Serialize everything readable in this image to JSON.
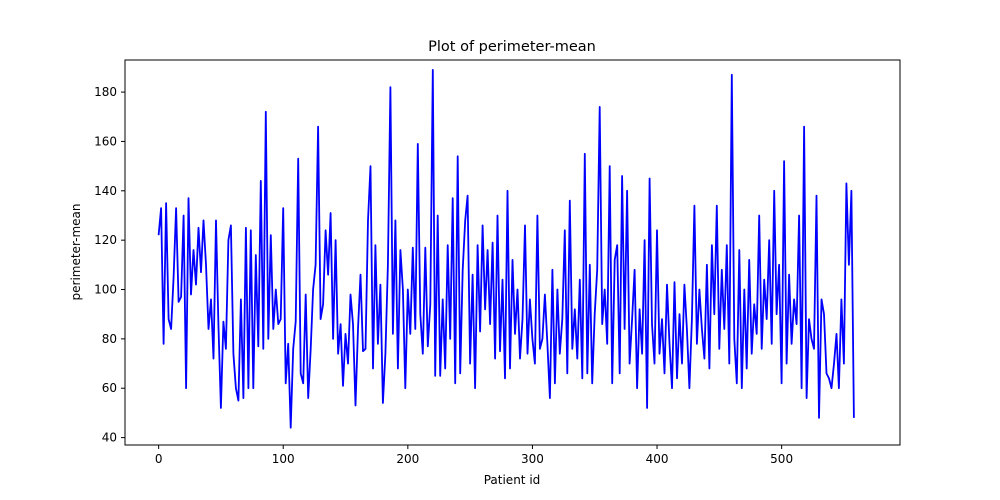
{
  "chart_data": {
    "type": "line",
    "title": "Plot of perimeter-mean",
    "xlabel": "Patient id",
    "ylabel": "perimeter-mean",
    "xlim": [
      -27,
      595
    ],
    "ylim": [
      37,
      193
    ],
    "xticks": [
      0,
      100,
      200,
      300,
      400,
      500
    ],
    "yticks": [
      40,
      60,
      80,
      100,
      120,
      140,
      160,
      180
    ],
    "grid": false,
    "legend": "none",
    "series": [
      {
        "color": "#0000ff",
        "points": [
          [
            0,
            122
          ],
          [
            2,
            133
          ],
          [
            4,
            78
          ],
          [
            6,
            135
          ],
          [
            8,
            88
          ],
          [
            10,
            84
          ],
          [
            12,
            105
          ],
          [
            14,
            133
          ],
          [
            16,
            95
          ],
          [
            18,
            97
          ],
          [
            20,
            130
          ],
          [
            22,
            60
          ],
          [
            24,
            137
          ],
          [
            26,
            98
          ],
          [
            28,
            116
          ],
          [
            30,
            102
          ],
          [
            32,
            125
          ],
          [
            34,
            107
          ],
          [
            36,
            128
          ],
          [
            38,
            110
          ],
          [
            40,
            84
          ],
          [
            42,
            96
          ],
          [
            44,
            72
          ],
          [
            46,
            128
          ],
          [
            48,
            86
          ],
          [
            50,
            52
          ],
          [
            52,
            87
          ],
          [
            54,
            76
          ],
          [
            56,
            120
          ],
          [
            58,
            126
          ],
          [
            60,
            74
          ],
          [
            62,
            60
          ],
          [
            64,
            55
          ],
          [
            66,
            96
          ],
          [
            68,
            56
          ],
          [
            70,
            125
          ],
          [
            72,
            60
          ],
          [
            74,
            124
          ],
          [
            76,
            60
          ],
          [
            78,
            114
          ],
          [
            80,
            77
          ],
          [
            82,
            144
          ],
          [
            84,
            76
          ],
          [
            86,
            172
          ],
          [
            88,
            80
          ],
          [
            90,
            122
          ],
          [
            92,
            84
          ],
          [
            94,
            100
          ],
          [
            96,
            86
          ],
          [
            98,
            88
          ],
          [
            100,
            133
          ],
          [
            102,
            62
          ],
          [
            104,
            78
          ],
          [
            106,
            44
          ],
          [
            108,
            76
          ],
          [
            110,
            87
          ],
          [
            112,
            153
          ],
          [
            114,
            66
          ],
          [
            116,
            62
          ],
          [
            118,
            98
          ],
          [
            120,
            56
          ],
          [
            122,
            76
          ],
          [
            124,
            100
          ],
          [
            126,
            110
          ],
          [
            128,
            166
          ],
          [
            130,
            88
          ],
          [
            132,
            94
          ],
          [
            134,
            124
          ],
          [
            136,
            106
          ],
          [
            138,
            131
          ],
          [
            140,
            80
          ],
          [
            142,
            120
          ],
          [
            144,
            74
          ],
          [
            146,
            86
          ],
          [
            148,
            61
          ],
          [
            150,
            82
          ],
          [
            152,
            70
          ],
          [
            154,
            98
          ],
          [
            156,
            86
          ],
          [
            158,
            53
          ],
          [
            160,
            84
          ],
          [
            162,
            106
          ],
          [
            164,
            75
          ],
          [
            166,
            76
          ],
          [
            168,
            128
          ],
          [
            170,
            150
          ],
          [
            172,
            68
          ],
          [
            174,
            118
          ],
          [
            176,
            78
          ],
          [
            178,
            102
          ],
          [
            180,
            54
          ],
          [
            182,
            74
          ],
          [
            184,
            110
          ],
          [
            186,
            182
          ],
          [
            188,
            82
          ],
          [
            190,
            128
          ],
          [
            192,
            68
          ],
          [
            194,
            116
          ],
          [
            196,
            100
          ],
          [
            198,
            60
          ],
          [
            200,
            100
          ],
          [
            202,
            82
          ],
          [
            204,
            117
          ],
          [
            206,
            84
          ],
          [
            208,
            159
          ],
          [
            210,
            90
          ],
          [
            212,
            74
          ],
          [
            214,
            117
          ],
          [
            216,
            77
          ],
          [
            218,
            94
          ],
          [
            220,
            189
          ],
          [
            222,
            65
          ],
          [
            224,
            130
          ],
          [
            226,
            65
          ],
          [
            228,
            96
          ],
          [
            230,
            68
          ],
          [
            232,
            118
          ],
          [
            234,
            80
          ],
          [
            236,
            137
          ],
          [
            238,
            62
          ],
          [
            240,
            154
          ],
          [
            242,
            66
          ],
          [
            244,
            108
          ],
          [
            246,
            128
          ],
          [
            248,
            138
          ],
          [
            250,
            70
          ],
          [
            252,
            106
          ],
          [
            254,
            60
          ],
          [
            256,
            118
          ],
          [
            258,
            83
          ],
          [
            260,
            126
          ],
          [
            262,
            92
          ],
          [
            264,
            116
          ],
          [
            266,
            86
          ],
          [
            268,
            119
          ],
          [
            270,
            72
          ],
          [
            272,
            130
          ],
          [
            274,
            75
          ],
          [
            276,
            104
          ],
          [
            278,
            64
          ],
          [
            280,
            140
          ],
          [
            282,
            68
          ],
          [
            284,
            112
          ],
          [
            286,
            82
          ],
          [
            288,
            100
          ],
          [
            290,
            72
          ],
          [
            292,
            88
          ],
          [
            294,
            126
          ],
          [
            296,
            74
          ],
          [
            298,
            96
          ],
          [
            300,
            80
          ],
          [
            302,
            70
          ],
          [
            304,
            130
          ],
          [
            306,
            76
          ],
          [
            308,
            80
          ],
          [
            310,
            98
          ],
          [
            312,
            78
          ],
          [
            314,
            56
          ],
          [
            316,
            108
          ],
          [
            318,
            62
          ],
          [
            320,
            100
          ],
          [
            322,
            74
          ],
          [
            324,
            88
          ],
          [
            326,
            124
          ],
          [
            328,
            66
          ],
          [
            330,
            136
          ],
          [
            332,
            76
          ],
          [
            334,
            92
          ],
          [
            336,
            72
          ],
          [
            338,
            104
          ],
          [
            340,
            64
          ],
          [
            342,
            155
          ],
          [
            344,
            66
          ],
          [
            346,
            110
          ],
          [
            348,
            62
          ],
          [
            350,
            90
          ],
          [
            352,
            108
          ],
          [
            354,
            174
          ],
          [
            356,
            86
          ],
          [
            358,
            100
          ],
          [
            360,
            78
          ],
          [
            362,
            150
          ],
          [
            364,
            62
          ],
          [
            366,
            112
          ],
          [
            368,
            118
          ],
          [
            370,
            66
          ],
          [
            372,
            146
          ],
          [
            374,
            84
          ],
          [
            376,
            140
          ],
          [
            378,
            70
          ],
          [
            380,
            88
          ],
          [
            382,
            108
          ],
          [
            384,
            60
          ],
          [
            386,
            92
          ],
          [
            388,
            74
          ],
          [
            390,
            120
          ],
          [
            392,
            52
          ],
          [
            394,
            145
          ],
          [
            396,
            86
          ],
          [
            398,
            70
          ],
          [
            400,
            124
          ],
          [
            402,
            74
          ],
          [
            404,
            88
          ],
          [
            406,
            66
          ],
          [
            408,
            102
          ],
          [
            410,
            78
          ],
          [
            412,
            60
          ],
          [
            414,
            103
          ],
          [
            416,
            64
          ],
          [
            418,
            90
          ],
          [
            420,
            70
          ],
          [
            422,
            102
          ],
          [
            424,
            84
          ],
          [
            426,
            60
          ],
          [
            428,
            88
          ],
          [
            430,
            134
          ],
          [
            432,
            78
          ],
          [
            434,
            100
          ],
          [
            436,
            84
          ],
          [
            438,
            72
          ],
          [
            440,
            110
          ],
          [
            442,
            68
          ],
          [
            444,
            118
          ],
          [
            446,
            90
          ],
          [
            448,
            134
          ],
          [
            450,
            76
          ],
          [
            452,
            108
          ],
          [
            454,
            84
          ],
          [
            456,
            118
          ],
          [
            458,
            70
          ],
          [
            460,
            187
          ],
          [
            462,
            80
          ],
          [
            464,
            62
          ],
          [
            466,
            116
          ],
          [
            468,
            60
          ],
          [
            470,
            100
          ],
          [
            472,
            68
          ],
          [
            474,
            112
          ],
          [
            476,
            74
          ],
          [
            478,
            94
          ],
          [
            480,
            82
          ],
          [
            482,
            130
          ],
          [
            484,
            76
          ],
          [
            486,
            104
          ],
          [
            488,
            88
          ],
          [
            490,
            120
          ],
          [
            492,
            78
          ],
          [
            494,
            140
          ],
          [
            496,
            90
          ],
          [
            498,
            110
          ],
          [
            500,
            62
          ],
          [
            502,
            152
          ],
          [
            504,
            70
          ],
          [
            506,
            106
          ],
          [
            508,
            78
          ],
          [
            510,
            96
          ],
          [
            512,
            86
          ],
          [
            514,
            130
          ],
          [
            516,
            60
          ],
          [
            518,
            166
          ],
          [
            520,
            56
          ],
          [
            522,
            88
          ],
          [
            524,
            80
          ],
          [
            526,
            76
          ],
          [
            528,
            138
          ],
          [
            530,
            48
          ],
          [
            532,
            96
          ],
          [
            534,
            90
          ],
          [
            536,
            66
          ],
          [
            538,
            64
          ],
          [
            540,
            60
          ],
          [
            542,
            70
          ],
          [
            544,
            82
          ],
          [
            546,
            60
          ],
          [
            548,
            96
          ],
          [
            550,
            70
          ],
          [
            552,
            143
          ],
          [
            554,
            110
          ],
          [
            556,
            140
          ],
          [
            558,
            48
          ]
        ]
      }
    ]
  }
}
